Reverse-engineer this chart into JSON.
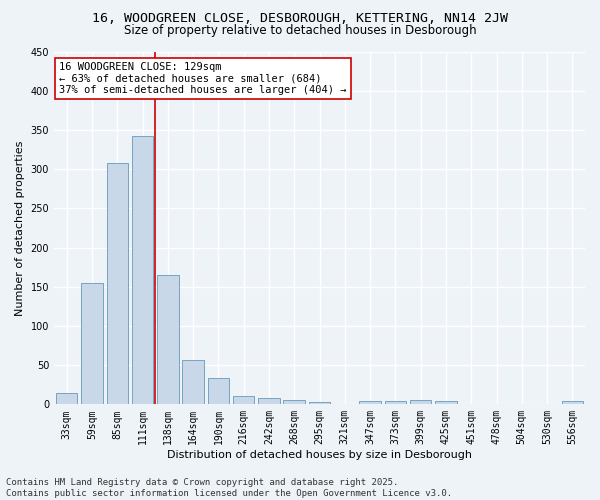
{
  "title": "16, WOODGREEN CLOSE, DESBOROUGH, KETTERING, NN14 2JW",
  "subtitle": "Size of property relative to detached houses in Desborough",
  "xlabel": "Distribution of detached houses by size in Desborough",
  "ylabel": "Number of detached properties",
  "bar_color": "#c8d8e8",
  "bar_edge_color": "#6699bb",
  "categories": [
    "33sqm",
    "59sqm",
    "85sqm",
    "111sqm",
    "138sqm",
    "164sqm",
    "190sqm",
    "216sqm",
    "242sqm",
    "268sqm",
    "295sqm",
    "321sqm",
    "347sqm",
    "373sqm",
    "399sqm",
    "425sqm",
    "451sqm",
    "478sqm",
    "504sqm",
    "530sqm",
    "556sqm"
  ],
  "values": [
    15,
    155,
    308,
    342,
    165,
    57,
    34,
    10,
    8,
    6,
    3,
    0,
    4,
    4,
    5,
    4,
    0,
    0,
    0,
    0,
    4
  ],
  "ylim": [
    0,
    450
  ],
  "yticks": [
    0,
    50,
    100,
    150,
    200,
    250,
    300,
    350,
    400,
    450
  ],
  "vline_index": 3.5,
  "vline_color": "#cc0000",
  "annotation_text": "16 WOODGREEN CLOSE: 129sqm\n← 63% of detached houses are smaller (684)\n37% of semi-detached houses are larger (404) →",
  "annotation_box_color": "#ffffff",
  "annotation_box_edge": "#cc0000",
  "footer_text": "Contains HM Land Registry data © Crown copyright and database right 2025.\nContains public sector information licensed under the Open Government Licence v3.0.",
  "bg_color": "#eef3f8",
  "plot_bg_color": "#eef3f8",
  "grid_color": "#ffffff",
  "title_fontsize": 9.5,
  "subtitle_fontsize": 8.5,
  "label_fontsize": 8,
  "tick_fontsize": 7,
  "footer_fontsize": 6.5,
  "annotation_fontsize": 7.5
}
